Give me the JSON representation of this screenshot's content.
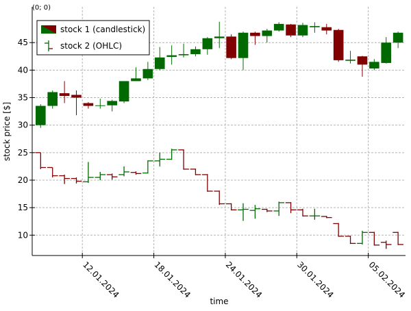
{
  "chart_data": {
    "type": "candlestick",
    "corner_label": "(0; 0)",
    "xlabel": "time",
    "ylabel": "stock price [$]",
    "x": [
      "2024-01-08",
      "2024-01-09",
      "2024-01-10",
      "2024-01-11",
      "2024-01-12",
      "2024-01-13",
      "2024-01-14",
      "2024-01-15",
      "2024-01-16",
      "2024-01-17",
      "2024-01-18",
      "2024-01-19",
      "2024-01-20",
      "2024-01-21",
      "2024-01-22",
      "2024-01-23",
      "2024-01-24",
      "2024-01-25",
      "2024-01-26",
      "2024-01-27",
      "2024-01-28",
      "2024-01-29",
      "2024-01-30",
      "2024-01-31",
      "2024-02-01",
      "2024-02-02",
      "2024-02-03",
      "2024-02-04",
      "2024-02-05",
      "2024-02-06",
      "2024-02-07"
    ],
    "xlim": [
      "2024-01-07T19:00:00Z",
      "2024-02-08T03:00:00Z"
    ],
    "xticks": [
      {
        "value": "2024-01-12",
        "label": "12.01.2024"
      },
      {
        "value": "2024-01-18",
        "label": "18.01.2024"
      },
      {
        "value": "2024-01-24",
        "label": "24.01.2024"
      },
      {
        "value": "2024-01-30",
        "label": "30.01.2024"
      },
      {
        "value": "2024-02-05",
        "label": "05.02.2024"
      }
    ],
    "ylim": [
      6.3,
      51.5
    ],
    "yticks": [
      10,
      15,
      20,
      25,
      30,
      35,
      40,
      45
    ],
    "grid": true,
    "legend": "upper left",
    "series": [
      {
        "name": "stock 1 (candlestick)",
        "type": "candlestick",
        "color_up": "#006a00",
        "color_down": "#800000",
        "open": [
          30,
          33.5,
          35.8,
          35.5,
          34,
          33.5,
          33.6,
          34.3,
          38,
          38.5,
          40.2,
          42.4,
          42.7,
          42.9,
          43.8,
          45.8,
          46.1,
          42.2,
          46.8,
          46.2,
          47.2,
          48.3,
          46.3,
          47.8,
          47.8,
          47.3,
          41.7,
          42.5,
          40.3,
          41.3,
          45
        ],
        "high": [
          33.8,
          36.3,
          38,
          36.3,
          34.2,
          34.8,
          34.6,
          38,
          40.5,
          41.5,
          44.2,
          44.5,
          44.8,
          44.3,
          46,
          48.8,
          46.5,
          47,
          47,
          47.5,
          48.7,
          48.4,
          48.6,
          48.7,
          48.4,
          47.5,
          43.5,
          42.6,
          42,
          46,
          47
        ],
        "low": [
          29.5,
          33,
          34,
          31.8,
          33,
          33,
          32.5,
          34,
          38,
          38.2,
          40,
          41,
          42.3,
          42.5,
          42.8,
          44,
          42,
          40,
          44.6,
          45,
          47,
          46,
          46,
          46.8,
          46.5,
          41.5,
          41.2,
          38.8,
          40,
          41.2,
          44
        ],
        "close": [
          33.5,
          36,
          35.3,
          35,
          33.5,
          33.6,
          34.4,
          38,
          38.5,
          40.2,
          42.3,
          42.7,
          42.9,
          43.8,
          45.8,
          46.1,
          42.2,
          46.8,
          46.2,
          47.2,
          48.4,
          46.3,
          48.2,
          48,
          47.2,
          41.8,
          41.9,
          41,
          41.5,
          45,
          46.8
        ]
      },
      {
        "name": "stock 2 (OHLC)",
        "type": "ohlc",
        "color_up": "#006a00",
        "color_down": "#800000",
        "open": [
          25,
          22.3,
          20.8,
          20.3,
          19.7,
          20.5,
          21,
          21,
          21.4,
          21.3,
          23.5,
          23.8,
          25.5,
          22,
          21,
          18,
          15.7,
          14.6,
          14.5,
          14.7,
          14.4,
          15.9,
          14.6,
          13.5,
          13.4,
          12.1,
          9.8,
          8.5,
          10.5,
          8.7,
          10.5
        ],
        "high": [
          25,
          22.3,
          21,
          20.5,
          23.3,
          21.5,
          21.2,
          22.5,
          21.6,
          23.6,
          25,
          25.7,
          25.6,
          22.1,
          21.1,
          18.1,
          15.8,
          15.8,
          15.5,
          14.8,
          16.1,
          16,
          14.8,
          14.8,
          13.5,
          12.2,
          9.9,
          10.8,
          10.6,
          9,
          10.6
        ],
        "low": [
          22,
          20.5,
          19.3,
          19.4,
          19.5,
          20,
          20.1,
          20.7,
          21,
          21.2,
          22.5,
          23.7,
          21.9,
          20.9,
          17.9,
          15.5,
          14.5,
          12.6,
          13,
          14.2,
          13.5,
          14,
          13.4,
          12.8,
          13.1,
          9.7,
          8.4,
          8.3,
          8.1,
          7.5,
          8.2
        ],
        "close": [
          22.3,
          20.8,
          20.3,
          19.8,
          20.5,
          21,
          20.6,
          21.5,
          21.2,
          23.5,
          23.8,
          25.5,
          22,
          21,
          18,
          15.7,
          14.6,
          14.7,
          14.8,
          14.4,
          15.9,
          14.6,
          13.5,
          13.5,
          13.2,
          9.8,
          8.5,
          10.5,
          8.2,
          8.3,
          8.3
        ]
      }
    ]
  }
}
